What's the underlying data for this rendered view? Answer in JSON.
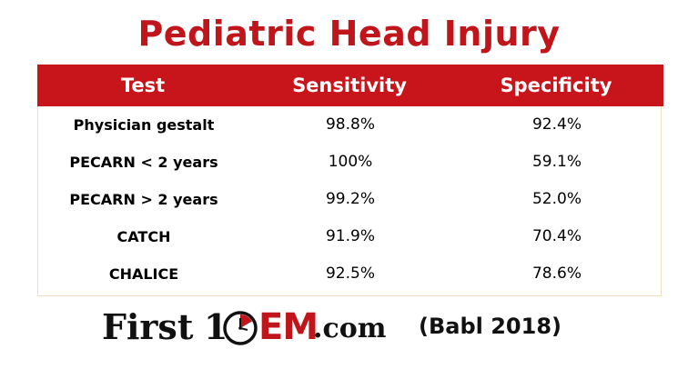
{
  "title": "Pediatric Head Injury",
  "table": {
    "headers": [
      "Test",
      "Sensitivity",
      "Specificity"
    ],
    "rows": [
      {
        "test": "Physician gestalt",
        "sensitivity": "98.8%",
        "specificity": "92.4%"
      },
      {
        "test": "PECARN < 2 years",
        "sensitivity": "100%",
        "specificity": "59.1%"
      },
      {
        "test": "PECARN > 2 years",
        "sensitivity": "99.2%",
        "specificity": "52.0%"
      },
      {
        "test": "CATCH",
        "sensitivity": "91.9%",
        "specificity": "70.4%"
      },
      {
        "test": "CHALICE",
        "sensitivity": "92.5%",
        "specificity": "78.6%"
      }
    ]
  },
  "logo": {
    "part1": "First",
    "part2": "1",
    "part3": "EM",
    "part4": ".com"
  },
  "citation": "(Babl 2018)",
  "colors": {
    "brand_red": "#c8151b",
    "text": "#000000"
  }
}
